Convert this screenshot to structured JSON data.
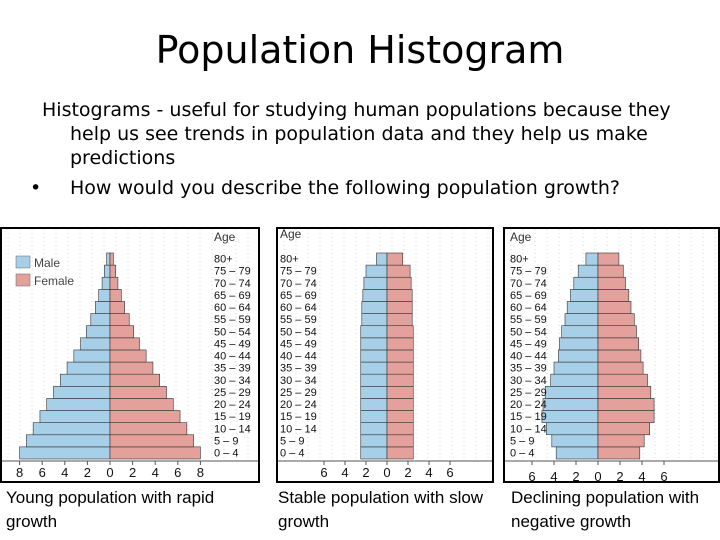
{
  "slide": {
    "title": "Population Histogram",
    "paragraph": "Histograms - useful for studying human populations because they help us see trends in population data and they help us make predictions",
    "bullet": "How would you describe the following population growth?"
  },
  "chart_data": [
    {
      "type": "bar",
      "orientation": "horizontal-pyramid",
      "categories": [
        "0 – 4",
        "5 – 9",
        "10 – 14",
        "15 – 19",
        "20 – 24",
        "25 – 29",
        "30 – 34",
        "35 – 39",
        "40 – 44",
        "45 – 49",
        "50 – 54",
        "55 – 59",
        "60 – 64",
        "65 – 69",
        "70 – 74",
        "75 – 79",
        "80+"
      ],
      "series": [
        {
          "name": "Male",
          "values": [
            8,
            7.4,
            6.8,
            6.2,
            5.6,
            5.0,
            4.4,
            3.8,
            3.2,
            2.6,
            2.1,
            1.7,
            1.3,
            1.0,
            0.7,
            0.5,
            0.3
          ]
        },
        {
          "name": "Female",
          "values": [
            8,
            7.4,
            6.8,
            6.2,
            5.6,
            5.0,
            4.4,
            3.8,
            3.2,
            2.6,
            2.1,
            1.7,
            1.3,
            1.0,
            0.7,
            0.5,
            0.3
          ]
        }
      ],
      "xticks": [
        "8",
        "6",
        "4",
        "2",
        "0",
        "2",
        "4",
        "6",
        "8"
      ],
      "xlim": [
        -8,
        8
      ],
      "ylabel": "Age",
      "legend": [
        "Male",
        "Female"
      ],
      "caption": "Young population with rapid growth",
      "colors": {
        "male": "#a8cfe8",
        "female": "#e4a19c"
      }
    },
    {
      "type": "bar",
      "orientation": "horizontal-pyramid",
      "categories": [
        "0 – 4",
        "5 – 9",
        "10 – 14",
        "15 – 19",
        "20 – 24",
        "25 – 29",
        "30 – 34",
        "35 – 39",
        "40 – 44",
        "45 – 49",
        "50 – 54",
        "55 – 59",
        "60 – 64",
        "65 – 69",
        "70 – 74",
        "75 – 79",
        "80+"
      ],
      "series": [
        {
          "name": "Male",
          "values": [
            2.5,
            2.5,
            2.5,
            2.5,
            2.5,
            2.5,
            2.5,
            2.5,
            2.5,
            2.5,
            2.5,
            2.4,
            2.4,
            2.3,
            2.2,
            2.0,
            1.0
          ]
        },
        {
          "name": "Female",
          "values": [
            2.5,
            2.5,
            2.5,
            2.5,
            2.5,
            2.5,
            2.5,
            2.5,
            2.5,
            2.5,
            2.5,
            2.4,
            2.4,
            2.4,
            2.3,
            2.2,
            1.5
          ]
        }
      ],
      "xticks": [
        "6",
        "4",
        "2",
        "0",
        "2",
        "4",
        "6"
      ],
      "xlim": [
        -6,
        6
      ],
      "ylabel": "Age",
      "caption": "Stable population with slow growth",
      "colors": {
        "male": "#a8cfe8",
        "female": "#e4a19c"
      }
    },
    {
      "type": "bar",
      "orientation": "horizontal-pyramid",
      "categories": [
        "0 – 4",
        "5 – 9",
        "10 – 14",
        "15 – 19",
        "20 – 24",
        "25 – 29",
        "30 – 34",
        "35 – 39",
        "40 – 44",
        "45 – 49",
        "50 – 54",
        "55 – 59",
        "60 – 64",
        "65 – 69",
        "70 – 74",
        "75 – 79",
        "80+"
      ],
      "series": [
        {
          "name": "Male",
          "values": [
            3.8,
            4.2,
            4.7,
            5.1,
            5.0,
            4.8,
            4.3,
            4.0,
            3.6,
            3.5,
            3.3,
            3.0,
            2.8,
            2.5,
            2.2,
            1.8,
            1.1
          ]
        },
        {
          "name": "Female",
          "values": [
            3.8,
            4.2,
            4.7,
            5.1,
            5.1,
            4.8,
            4.5,
            4.1,
            3.9,
            3.7,
            3.5,
            3.3,
            3.0,
            2.8,
            2.5,
            2.3,
            1.9
          ]
        }
      ],
      "xticks": [
        "6",
        "4",
        "2",
        "0",
        "2",
        "4",
        "6"
      ],
      "xlim": [
        -6,
        6
      ],
      "ylabel": "Age",
      "caption": "Declining population with negative growth",
      "colors": {
        "male": "#a8cfe8",
        "female": "#e4a19c"
      }
    }
  ]
}
